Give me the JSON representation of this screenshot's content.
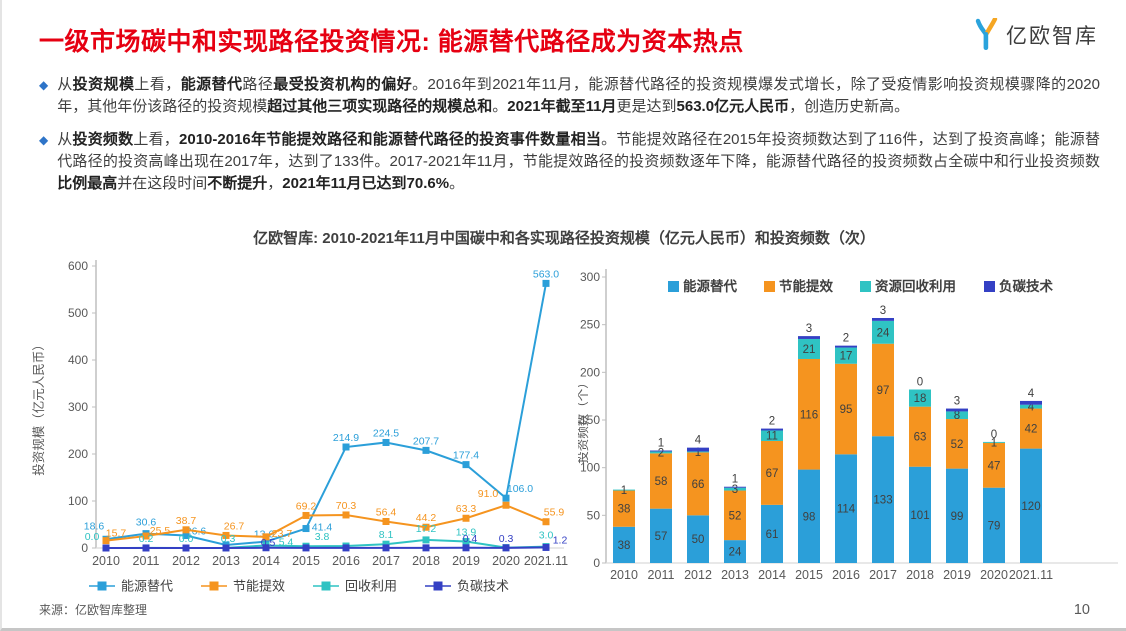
{
  "header": {
    "title": "一级市场碳中和实现路径投资情况: 能源替代路径成为资本热点",
    "logo": "亿欧智库"
  },
  "bullets": [
    {
      "segments": [
        {
          "t": "从",
          "b": false
        },
        {
          "t": "投资规模",
          "b": true
        },
        {
          "t": "上看，",
          "b": false
        },
        {
          "t": "能源替代",
          "b": true
        },
        {
          "t": "路径",
          "b": false
        },
        {
          "t": "最受投资机构的偏好",
          "b": true
        },
        {
          "t": "。2016年到2021年11月，能源替代路径的投资规模爆发式增长，除了受疫情影响投资规模骤降的2020年，其他年份该路径的投资规模",
          "b": false
        },
        {
          "t": "超过其他三项实现路径的规模总和",
          "b": true
        },
        {
          "t": "。",
          "b": false
        },
        {
          "t": "2021年截至11月",
          "b": true
        },
        {
          "t": "更是达到",
          "b": false
        },
        {
          "t": "563.0亿元人民币",
          "b": true
        },
        {
          "t": "，创造历史新高。",
          "b": false
        }
      ]
    },
    {
      "segments": [
        {
          "t": "从",
          "b": false
        },
        {
          "t": "投资频数",
          "b": true
        },
        {
          "t": "上看，",
          "b": false
        },
        {
          "t": "2010-2016年节能提效路径和能源替代路径的投资事件数量相当",
          "b": true
        },
        {
          "t": "。节能提效路径在2015年投资频数达到了116件，达到了投资高峰；能源替代路径的投资高峰出现在2017年，达到了133件。2017-2021年11月，节能提效路径的投资频数逐年下降，能源替代路径的投资频数占全碳中和行业投资频数",
          "b": false
        },
        {
          "t": "比例最高",
          "b": true
        },
        {
          "t": "并在这段时间",
          "b": false
        },
        {
          "t": "不断提升",
          "b": true
        },
        {
          "t": "，",
          "b": false
        },
        {
          "t": "2021年11月已达到70.6%",
          "b": true
        },
        {
          "t": "。",
          "b": false
        }
      ]
    }
  ],
  "chart_title": "亿欧智库: 2010-2021年11月中国碳中和各实现路径投资规模（亿元人民币）和投资频数（次）",
  "colors": {
    "energy": "#2b9fd9",
    "efficiency": "#f5941f",
    "recycle": "#2fc3c3",
    "negative": "#3440c4",
    "title_red": "#e60012",
    "bullet_blue": "#2e74c8",
    "text": "#3f3f3f",
    "axis_text": "#595959"
  },
  "chart_data": [
    {
      "type": "line",
      "title": "投资规模",
      "ylabel": "投资规模（亿元人民币）",
      "ylim": [
        0,
        600
      ],
      "ytick_step": 100,
      "grid": false,
      "legend_position": "bottom",
      "categories": [
        "2010",
        "2011",
        "2012",
        "2013",
        "2014",
        "2015",
        "2016",
        "2017",
        "2018",
        "2019",
        "2020",
        "2021.11"
      ],
      "series": [
        {
          "name": "能源替代",
          "color_key": "energy",
          "values": [
            18.6,
            30.6,
            26.6,
            6.5,
            13.6,
            41.4,
            214.9,
            224.5,
            207.7,
            177.4,
            106.0,
            563.0
          ],
          "labels": [
            "18.6",
            "30.6",
            "26.6",
            "",
            "13.6",
            "41.4",
            "214.9",
            "224.5",
            "207.7",
            "177.4",
            "106.0",
            "563.0"
          ]
        },
        {
          "name": "节能提效",
          "color_key": "efficiency",
          "values": [
            15.7,
            25.5,
            38.7,
            26.7,
            23.7,
            69.2,
            70.3,
            56.4,
            44.2,
            63.3,
            91.0,
            55.9
          ],
          "labels": [
            "15.7",
            "25.5",
            "38.7",
            "26.7",
            "23.7",
            "69.2",
            "70.3",
            "56.4",
            "44.2",
            "63.3",
            "91.0",
            "55.9"
          ]
        },
        {
          "name": "回收利用",
          "color_key": "recycle",
          "values": [
            0.0,
            0.2,
            0.0,
            0.3,
            5.4,
            3.8,
            4.2,
            8.1,
            17.2,
            13.9,
            0.8,
            3.0
          ],
          "labels": [
            "0.0",
            "0.2",
            "0.0",
            "0.3",
            "5.4",
            "3.8",
            "",
            "8.1",
            "17.2",
            "13.9",
            "",
            "3.0"
          ]
        },
        {
          "name": "负碳技术",
          "color_key": "negative",
          "values": [
            0.0,
            0.0,
            0.0,
            0.1,
            0.5,
            0.2,
            0.2,
            0.3,
            0.3,
            0.4,
            0.3,
            1.2
          ],
          "labels": [
            "",
            "",
            "",
            "",
            "0.5",
            "",
            "",
            "",
            "",
            "0.4",
            "0.3",
            "1.2"
          ]
        }
      ]
    },
    {
      "type": "bar",
      "stacked": true,
      "title": "投资频数",
      "ylabel": "投资频数（个）",
      "ylim": [
        0,
        300
      ],
      "ytick_step": 50,
      "grid": false,
      "legend_position": "top",
      "categories": [
        "2010",
        "2011",
        "2012",
        "2013",
        "2014",
        "2015",
        "2016",
        "2017",
        "2018",
        "2019",
        "2020",
        "2021.11"
      ],
      "series": [
        {
          "name": "能源替代",
          "color_key": "energy",
          "values": [
            38,
            57,
            50,
            24,
            61,
            98,
            114,
            133,
            101,
            99,
            79,
            120
          ],
          "labels": [
            "38",
            "57",
            "50",
            "24",
            "61",
            "98",
            "114",
            "133",
            "101",
            "99",
            "79",
            "120"
          ]
        },
        {
          "name": "节能提效",
          "color_key": "efficiency",
          "values": [
            38,
            58,
            66,
            52,
            67,
            116,
            95,
            97,
            63,
            52,
            47,
            42
          ],
          "labels": [
            "38",
            "58",
            "66",
            "52",
            "67",
            "116",
            "95",
            "97",
            "63",
            "52",
            "47",
            "42"
          ]
        },
        {
          "name": "资源回收利用",
          "color_key": "recycle",
          "values": [
            1,
            2,
            1,
            3,
            11,
            21,
            17,
            24,
            18,
            8,
            1,
            4
          ],
          "labels": [
            "1",
            "2",
            "1",
            "3",
            "11",
            "21",
            "17",
            "24",
            "18",
            "8",
            "1",
            "4"
          ]
        },
        {
          "name": "负碳技术",
          "color_key": "negative",
          "values": [
            0,
            1,
            4,
            1,
            2,
            3,
            2,
            3,
            0,
            3,
            0,
            4
          ],
          "labels": [
            "",
            "1",
            "4",
            "1",
            "2",
            "3",
            "2",
            "3",
            "0",
            "3",
            "0",
            "4"
          ]
        }
      ]
    }
  ],
  "footer": {
    "source": "来源：亿欧智库整理",
    "page": "10"
  }
}
